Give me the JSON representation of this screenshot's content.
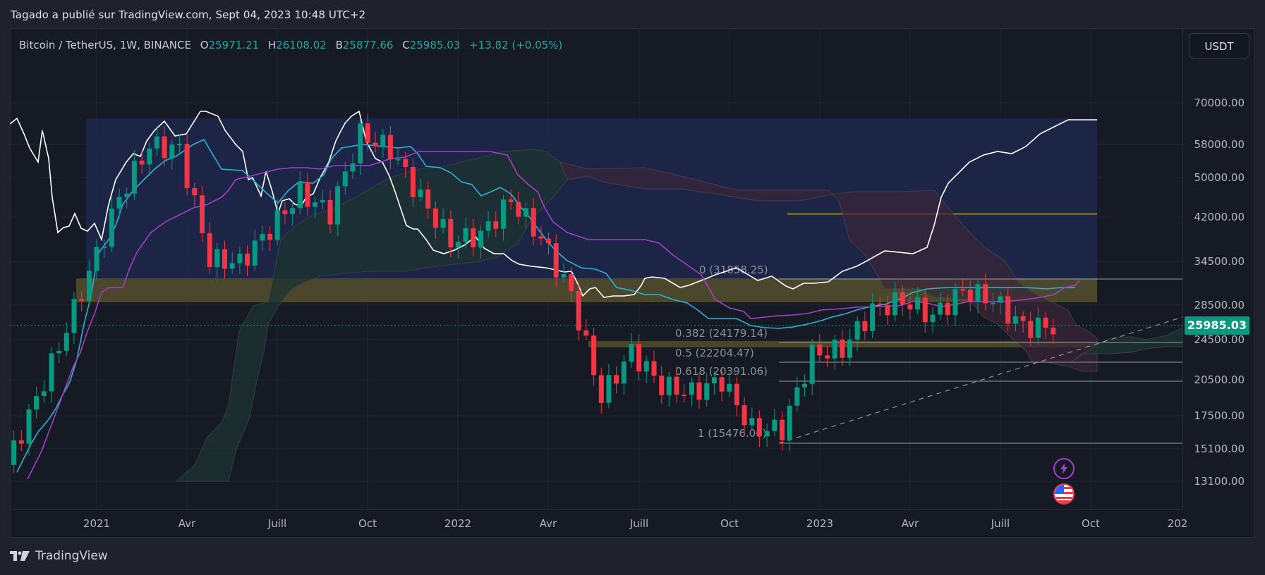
{
  "header": {
    "published_text": "Tagado a publié sur TradingView.com, Sept 04, 2023 10:48 UTC+2"
  },
  "legend": {
    "symbol": "Bitcoin / TetherUS, 1W, BINANCE",
    "open_label": "O",
    "open": "25971.21",
    "high_label": "H",
    "high": "26108.02",
    "low_label": "B",
    "low": "25877.66",
    "close_label": "C",
    "close": "25985.03",
    "change": "+13.82 (+0.05%)"
  },
  "currency_button": "USDT",
  "price_axis": {
    "ticks": [
      "70000.00",
      "58000.00",
      "50000.00",
      "42000.00",
      "34500.00",
      "28500.00",
      "24500.00",
      "20500.00",
      "17500.00",
      "15100.00",
      "13100.00"
    ],
    "last_price": "25985.03"
  },
  "time_axis": {
    "ticks": [
      "2021",
      "Avr",
      "Juill",
      "Oct",
      "2022",
      "Avr",
      "Juill",
      "Oct",
      "2023",
      "Avr",
      "Juill",
      "Oct",
      "202"
    ]
  },
  "fib_levels": [
    {
      "label": "0 (31858.25)",
      "price": 31858.25
    },
    {
      "label": "0.382 (24179.14)",
      "price": 24179.14
    },
    {
      "label": "0.5 (22204.47)",
      "price": 22204.47
    },
    {
      "label": "0.618 (20391.06)",
      "price": 20391.06
    },
    {
      "label": "1 (15476.00)",
      "price": 15476.0
    }
  ],
  "footer": {
    "brand": "TradingView"
  },
  "colors": {
    "up": "#089981",
    "down": "#f23645",
    "tenkan": "#2ab5d3",
    "kijun": "#a43fc9",
    "chikou": "#ffffff",
    "cloud_bull": "#2e4a3a",
    "cloud_bear": "#4a2d3d",
    "blue_zone": "#1d2648",
    "yellow_zone": "#4d4a2c",
    "accent": "#089981"
  },
  "chart_data": {
    "type": "candlestick",
    "title": "Bitcoin / TetherUS, 1W, BINANCE",
    "xlabel": "",
    "ylabel": "USDT",
    "ylim": [
      12000,
      78000
    ],
    "y_scale": "log",
    "x_ticks": [
      "2021",
      "Avr",
      "Juill",
      "Oct",
      "2022",
      "Avr",
      "Juill",
      "Oct",
      "2023",
      "Avr",
      "Juill",
      "Oct"
    ],
    "y_ticks": [
      70000,
      58000,
      50000,
      42000,
      34500,
      28500,
      24500,
      20500,
      17500,
      15100,
      13100
    ],
    "last_price": 25985.03,
    "ohlc_last": {
      "open": 25971.21,
      "high": 26108.02,
      "low": 25877.66,
      "close": 25985.03,
      "change": 13.82,
      "change_pct": 0.05
    },
    "indicators": [
      "Ichimoku Cloud (Tenkan, Kijun, Chikou, Senkou A/B)"
    ],
    "drawings": {
      "fibonacci_retracement": [
        {
          "level": 0,
          "price": 31858.25
        },
        {
          "level": 0.382,
          "price": 24179.14
        },
        {
          "level": 0.5,
          "price": 22204.47
        },
        {
          "level": 0.618,
          "price": 20391.06
        },
        {
          "level": 1,
          "price": 15476.0
        }
      ],
      "zones": [
        {
          "name": "blue range box",
          "top": 64000,
          "bottom": 31858
        },
        {
          "name": "yellow resistance zone",
          "top": 31858,
          "bottom": 28800
        },
        {
          "name": "yellow support zone",
          "top": 24500,
          "bottom": 23700
        },
        {
          "name": "horizontal line",
          "price": 43000
        }
      ],
      "trendline": {
        "from": [
          "2022-11",
          15476
        ],
        "to": [
          "2023-11",
          27000
        ],
        "style": "dashed"
      }
    },
    "weekly_closes_approx": [
      {
        "t": "2020-10",
        "c": 13100
      },
      {
        "t": "2020-11",
        "c": 17500
      },
      {
        "t": "2020-12",
        "c": 23800
      },
      {
        "t": "2021-01",
        "c": 33000
      },
      {
        "t": "2021-02",
        "c": 46000
      },
      {
        "t": "2021-03",
        "c": 58000
      },
      {
        "t": "2021-04",
        "c": 57000
      },
      {
        "t": "2021-05",
        "c": 35000
      },
      {
        "t": "2021-06",
        "c": 34500
      },
      {
        "t": "2021-07",
        "c": 40000
      },
      {
        "t": "2021-08",
        "c": 47000
      },
      {
        "t": "2021-09",
        "c": 43000
      },
      {
        "t": "2021-10",
        "c": 61000
      },
      {
        "t": "2021-11",
        "c": 57000
      },
      {
        "t": "2021-12",
        "c": 46000
      },
      {
        "t": "2022-01",
        "c": 38000
      },
      {
        "t": "2022-02",
        "c": 39000
      },
      {
        "t": "2022-03",
        "c": 45500
      },
      {
        "t": "2022-04",
        "c": 38500
      },
      {
        "t": "2022-05",
        "c": 30000
      },
      {
        "t": "2022-06",
        "c": 19000
      },
      {
        "t": "2022-07",
        "c": 23300
      },
      {
        "t": "2022-08",
        "c": 20000
      },
      {
        "t": "2022-09",
        "c": 19400
      },
      {
        "t": "2022-10",
        "c": 20500
      },
      {
        "t": "2022-11",
        "c": 16500
      },
      {
        "t": "2022-12",
        "c": 16500
      },
      {
        "t": "2023-01",
        "c": 23000
      },
      {
        "t": "2023-02",
        "c": 23500
      },
      {
        "t": "2023-03",
        "c": 28000
      },
      {
        "t": "2023-04",
        "c": 29200
      },
      {
        "t": "2023-05",
        "c": 27200
      },
      {
        "t": "2023-06",
        "c": 30500
      },
      {
        "t": "2023-07",
        "c": 29300
      },
      {
        "t": "2023-08",
        "c": 26000
      },
      {
        "t": "2023-09",
        "c": 25985
      }
    ]
  }
}
